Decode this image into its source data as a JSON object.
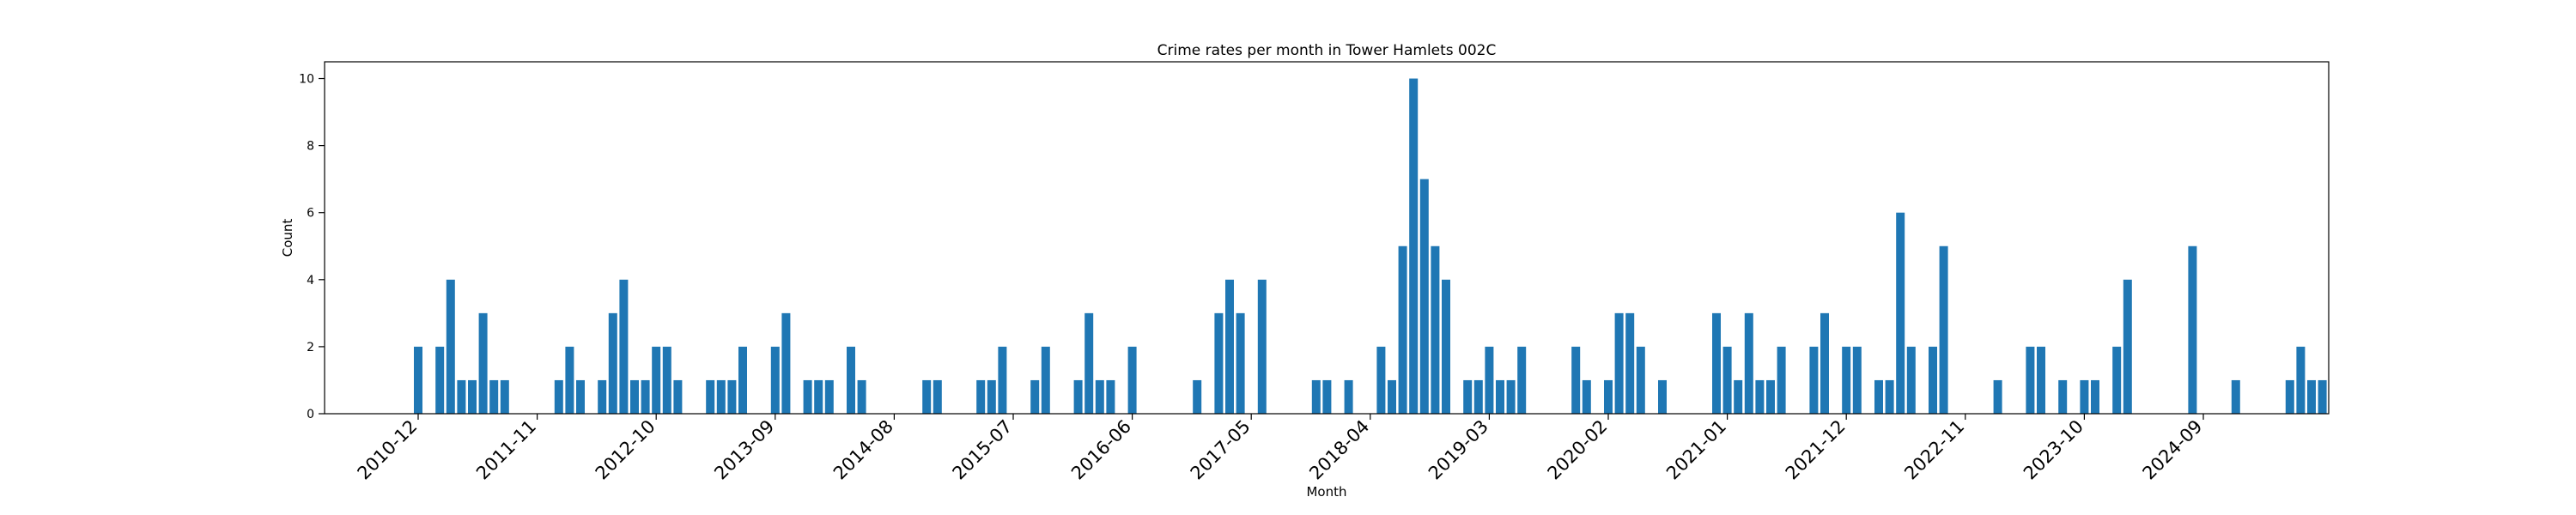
{
  "chart_data": {
    "type": "bar",
    "title": "Crime rates per month in Tower Hamlets 002C",
    "xlabel": "Month",
    "ylabel": "Count",
    "color": "#1f77b4",
    "ylim": [
      0,
      10.5
    ],
    "yticks": [
      0,
      2,
      4,
      6,
      8,
      10
    ],
    "x_start": "2010-12",
    "xticks": [
      "2010-12",
      "2011-11",
      "2012-10",
      "2013-09",
      "2014-08",
      "2015-07",
      "2016-06",
      "2017-05",
      "2018-04",
      "2019-03",
      "2020-02",
      "2021-01",
      "2021-12",
      "2022-11",
      "2023-10",
      "2024-09"
    ],
    "values": [
      2,
      0,
      2,
      4,
      1,
      1,
      3,
      1,
      1,
      0,
      0,
      0,
      0,
      1,
      2,
      1,
      0,
      1,
      3,
      4,
      1,
      1,
      2,
      2,
      1,
      0,
      0,
      1,
      1,
      1,
      2,
      0,
      0,
      2,
      3,
      0,
      1,
      1,
      1,
      0,
      2,
      1,
      0,
      0,
      0,
      0,
      0,
      1,
      1,
      0,
      0,
      0,
      1,
      1,
      2,
      0,
      0,
      1,
      2,
      0,
      0,
      1,
      3,
      1,
      1,
      0,
      2,
      0,
      0,
      0,
      0,
      0,
      1,
      0,
      3,
      4,
      3,
      0,
      4,
      0,
      0,
      0,
      0,
      1,
      1,
      0,
      1,
      0,
      0,
      2,
      1,
      5,
      10,
      7,
      5,
      4,
      0,
      1,
      1,
      2,
      1,
      1,
      2,
      0,
      0,
      0,
      0,
      2,
      1,
      0,
      1,
      3,
      3,
      2,
      0,
      1,
      0,
      0,
      0,
      0,
      3,
      2,
      1,
      3,
      1,
      1,
      2,
      0,
      0,
      2,
      3,
      0,
      2,
      2,
      0,
      1,
      1,
      6,
      2,
      0,
      2,
      5,
      0,
      0,
      0,
      0,
      1,
      0,
      0,
      2,
      2,
      0,
      1,
      0,
      1,
      1,
      0,
      2,
      4,
      0,
      0,
      0,
      0,
      0,
      5,
      0,
      0,
      0,
      1,
      0,
      0,
      0,
      0,
      1,
      2,
      1,
      1
    ]
  }
}
